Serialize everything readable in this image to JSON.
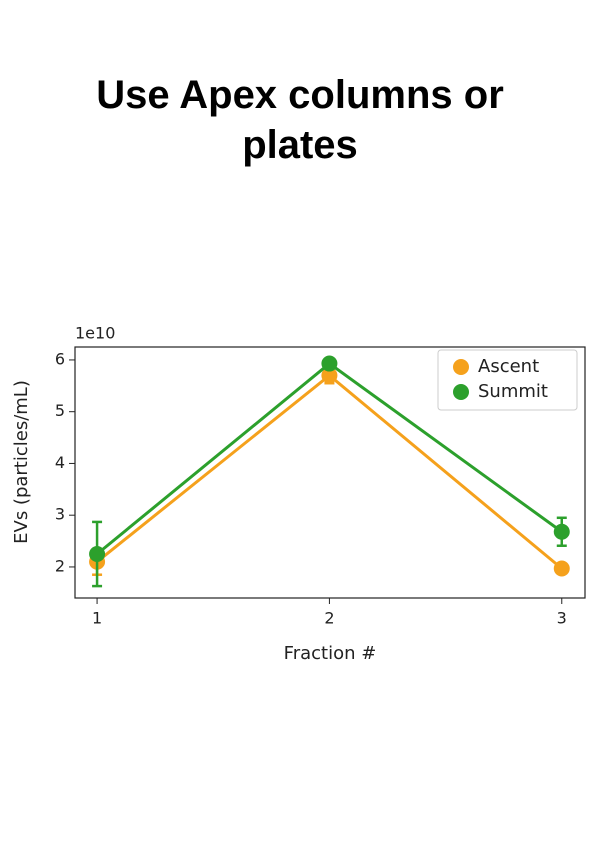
{
  "header": {
    "title": "Use Apex columns or plates"
  },
  "chart_data": {
    "type": "line",
    "ylabel": "EVs (particles/mL)",
    "xlabel": "Fraction #",
    "offset_label": "1e10",
    "x": [
      1,
      2,
      3
    ],
    "series": [
      {
        "name": "Ascent",
        "color": "#f5a11c",
        "values": [
          2.1,
          5.7,
          1.97
        ],
        "errors": [
          0.25,
          0.15,
          0.05
        ]
      },
      {
        "name": "Summit",
        "color": "#2ca02c",
        "values": [
          2.25,
          5.93,
          2.68
        ],
        "errors": [
          0.62,
          0.08,
          0.27
        ]
      }
    ],
    "xlim": [
      0.905,
      3.1
    ],
    "xticks": [
      1,
      2,
      3
    ],
    "ylim": [
      1.4,
      6.25
    ],
    "yticks": [
      2,
      3,
      4,
      5,
      6
    ],
    "legend": "upper right"
  }
}
